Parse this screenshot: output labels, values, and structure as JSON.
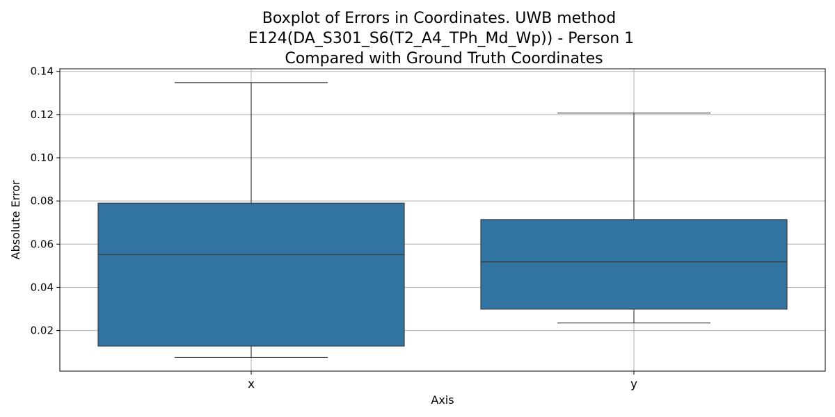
{
  "chart_data": {
    "type": "boxplot",
    "title_lines": [
      "Boxplot of Errors in Coordinates. UWB method",
      "E124(DA_S301_S6(T2_A4_TPh_Md_Wp)) - Person 1",
      "Compared with Ground Truth Coordinates"
    ],
    "xlabel": "Axis",
    "ylabel": "Absolute Error",
    "categories": [
      "x",
      "y"
    ],
    "boxes": [
      {
        "category": "x",
        "whisker_low": 0.0075,
        "q1": 0.0128,
        "median": 0.0552,
        "q3": 0.079,
        "whisker_high": 0.1348
      },
      {
        "category": "y",
        "whisker_low": 0.0235,
        "q1": 0.0299,
        "median": 0.0518,
        "q3": 0.0714,
        "whisker_high": 0.1207
      }
    ],
    "ylim": [
      0.0012,
      0.1412
    ],
    "yticks": [
      0.02,
      0.04,
      0.06,
      0.08,
      0.1,
      0.12,
      0.14
    ],
    "ytick_labels": [
      "0.02",
      "0.04",
      "0.06",
      "0.08",
      "0.10",
      "0.12",
      "0.14"
    ],
    "grid": true,
    "box_color": "#3274a1",
    "line_color": "#3b3b3b"
  }
}
